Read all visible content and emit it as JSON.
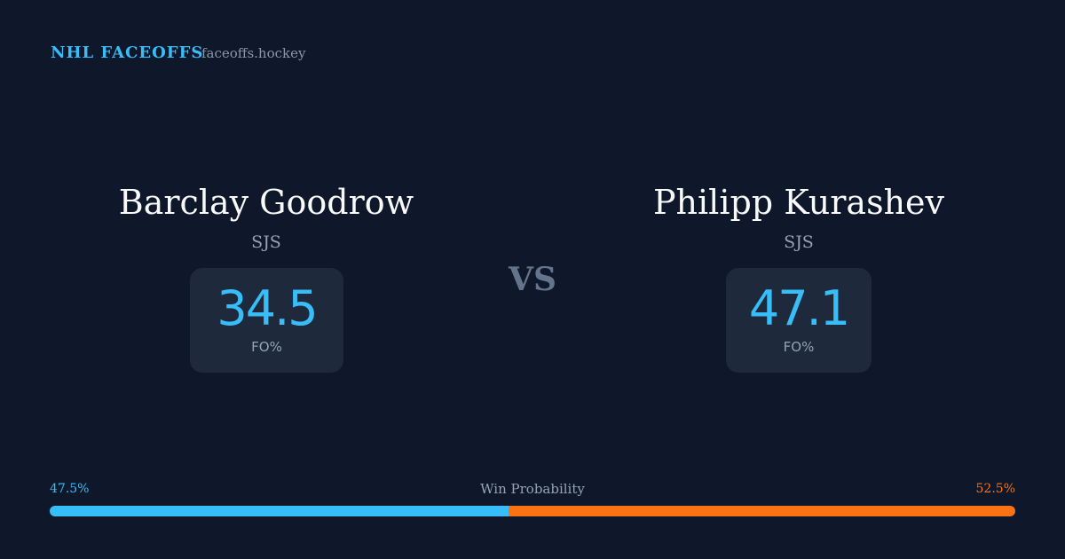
{
  "header": {
    "brand": "NHL FACEOFFS",
    "site": "faceoffs.hockey"
  },
  "players": [
    {
      "name": "Barclay Goodrow",
      "team": "SJS",
      "stat": 34.5,
      "stat_label": "FO%"
    },
    {
      "name": "Philipp Kurashev",
      "team": "SJS",
      "stat": 47.1,
      "stat_label": "FO%"
    }
  ],
  "vs": "VS",
  "win_probability": {
    "title": "Win Probability",
    "left": {
      "value": 47.5,
      "label": "47.5%",
      "color": "#38bdf8"
    },
    "right": {
      "value": 52.5,
      "label": "52.5%",
      "color": "#f97316"
    }
  }
}
